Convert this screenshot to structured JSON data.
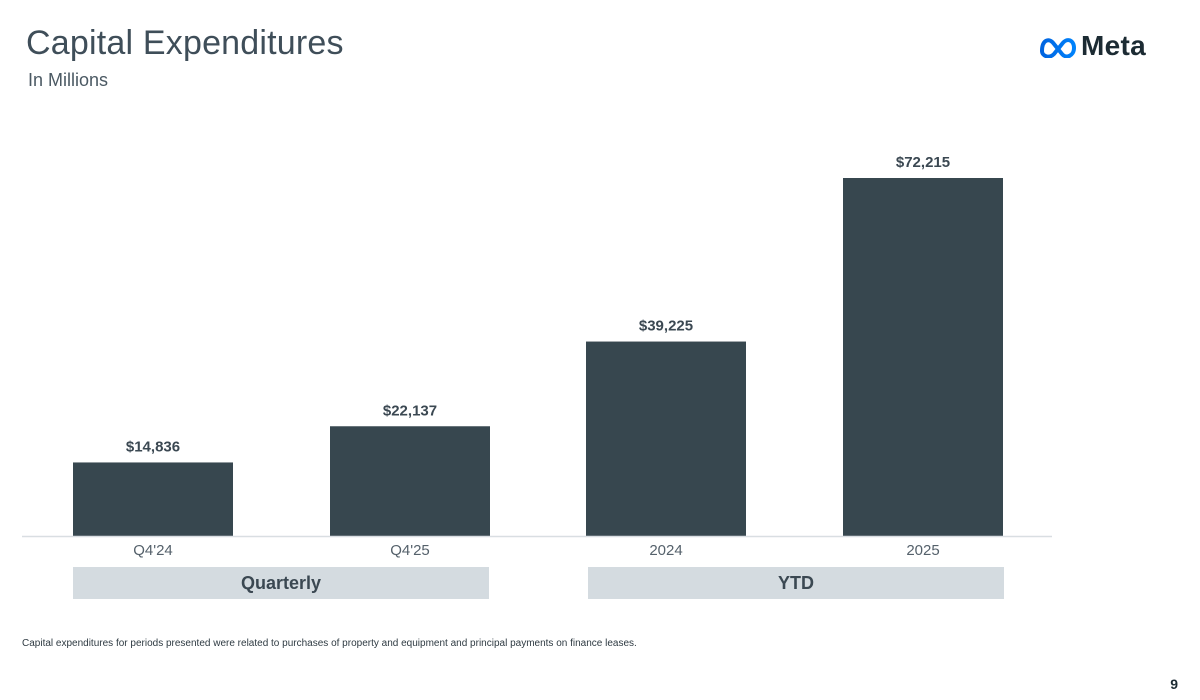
{
  "header": {
    "title": "Capital Expenditures",
    "subtitle": "In Millions",
    "logo_text": "Meta",
    "logo_icon": "meta-infinity-icon"
  },
  "chart_data": {
    "type": "bar",
    "title": "Capital Expenditures",
    "subtitle": "In Millions",
    "xlabel": "",
    "ylabel": "",
    "categories": [
      "Q4'24",
      "Q4'25",
      "2024",
      "2025"
    ],
    "values": [
      14836,
      22137,
      39225,
      72215
    ],
    "value_labels": [
      "$14,836",
      "$22,137",
      "$39,225",
      "$72,215"
    ],
    "groups": [
      {
        "label": "Quarterly",
        "categories": [
          "Q4'24",
          "Q4'25"
        ]
      },
      {
        "label": "YTD",
        "categories": [
          "2024",
          "2025"
        ]
      }
    ],
    "ylim": [
      0,
      72215
    ],
    "grid": false,
    "legend": "none",
    "bar_color": "#37474f",
    "group_band_color": "#d4dbe0"
  },
  "footer": {
    "footnote": "Capital expenditures for periods presented were related to purchases of property and equipment and principal payments on finance leases.",
    "page_number": "9"
  }
}
